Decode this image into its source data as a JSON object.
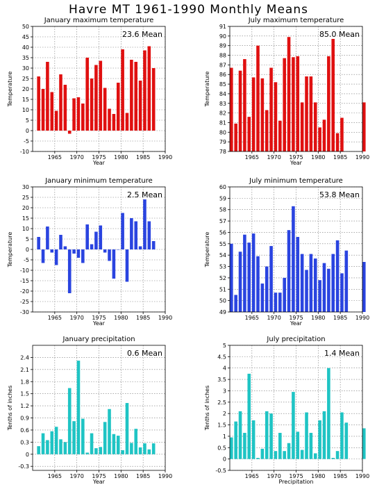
{
  "main_title": "Havre MT   1961-1990 Monthly Means",
  "chart_data": [
    {
      "type": "bar",
      "title": "January maximum temperature",
      "xlabel": "Year",
      "ylabel": "Temperature",
      "annotation": "23.6 Mean",
      "color": "#e01010",
      "xlim": [
        1960,
        1990
      ],
      "ylim": [
        -10,
        50
      ],
      "yticks": [
        -10,
        -5,
        0,
        5,
        10,
        15,
        20,
        25,
        30,
        35,
        40,
        45,
        50
      ],
      "ytick_labels": [
        "-10",
        "-5",
        "0",
        "5",
        "10",
        "15",
        "20",
        "25",
        "30",
        "35",
        "40",
        "45",
        "50"
      ],
      "xticks": [
        1965,
        1970,
        1975,
        1980,
        1985,
        1990
      ],
      "x": [
        1961,
        1962,
        1963,
        1964,
        1965,
        1966,
        1967,
        1968,
        1969,
        1970,
        1971,
        1972,
        1973,
        1974,
        1975,
        1976,
        1977,
        1978,
        1979,
        1980,
        1981,
        1982,
        1983,
        1984,
        1985,
        1986,
        1987,
        1988
      ],
      "values": [
        26,
        20,
        33,
        18.5,
        9.5,
        27,
        22,
        -1.5,
        15.5,
        16,
        13,
        35,
        25,
        31.5,
        33.5,
        20.5,
        10.5,
        8,
        23,
        39,
        8.5,
        34,
        33,
        24,
        38.5,
        40.5,
        30,
        null
      ],
      "grid": true
    },
    {
      "type": "bar",
      "title": "July maximum temperature",
      "xlabel": "Year",
      "ylabel": "Temperature",
      "annotation": "85.0 Mean",
      "color": "#e01010",
      "xlim": [
        1960,
        1990
      ],
      "ylim": [
        78,
        91
      ],
      "yticks": [
        78,
        79,
        80,
        81,
        82,
        83,
        84,
        85,
        86,
        87,
        88,
        89,
        90,
        91
      ],
      "ytick_labels": [
        "78",
        "79",
        "80",
        "81",
        "82",
        "83",
        "84",
        "85",
        "86",
        "87",
        "88",
        "89",
        "90",
        "91"
      ],
      "xticks": [
        1965,
        1970,
        1975,
        1980,
        1985,
        1990
      ],
      "x": [
        1960,
        1961,
        1962,
        1963,
        1964,
        1965,
        1966,
        1967,
        1968,
        1969,
        1970,
        1971,
        1972,
        1973,
        1974,
        1975,
        1976,
        1977,
        1978,
        1979,
        1980,
        1981,
        1982,
        1983,
        1984,
        1985,
        1986,
        1987,
        1988,
        1989,
        1990
      ],
      "values": [
        86.7,
        80.9,
        86.4,
        87.6,
        81.6,
        85.7,
        89.0,
        85.6,
        82.3,
        86.7,
        85.2,
        81.2,
        87.7,
        89.9,
        87.8,
        87.9,
        83.1,
        85.8,
        85.8,
        83.1,
        80.5,
        81.3,
        87.9,
        89.7,
        79.9,
        81.5,
        null,
        null,
        null,
        null,
        83.1
      ],
      "grid": true
    },
    {
      "type": "bar",
      "title": "January minimum temperature",
      "xlabel": "Year",
      "ylabel": "Temperature",
      "annotation": "2.5 Mean",
      "color": "#2a44e0",
      "xlim": [
        1960,
        1990
      ],
      "ylim": [
        -30,
        30
      ],
      "yticks": [
        -30,
        -25,
        -20,
        -15,
        -10,
        -5,
        0,
        5,
        10,
        15,
        20,
        25,
        30
      ],
      "ytick_labels": [
        "-30",
        "-25",
        "-20",
        "-15",
        "-10",
        "-5",
        "0",
        "5",
        "10",
        "15",
        "20",
        "25",
        "30"
      ],
      "xticks": [
        1965,
        1970,
        1975,
        1980,
        1985,
        1990
      ],
      "x": [
        1961,
        1962,
        1963,
        1964,
        1965,
        1966,
        1967,
        1968,
        1969,
        1970,
        1971,
        1972,
        1973,
        1974,
        1975,
        1976,
        1977,
        1978,
        1979,
        1980,
        1981,
        1982,
        1983,
        1984,
        1985,
        1986,
        1987,
        1988
      ],
      "values": [
        6,
        -6.5,
        11,
        -1.5,
        -7.5,
        7,
        1.5,
        -21,
        -2,
        -4,
        -6.5,
        12,
        2.5,
        8.5,
        11.5,
        -1.5,
        -5.5,
        -14,
        0,
        17.5,
        -15.5,
        15,
        13.5,
        1.5,
        24,
        13.5,
        4,
        null
      ],
      "grid": true
    },
    {
      "type": "bar",
      "title": "July minimum temperature",
      "xlabel": "Year",
      "ylabel": "Temperature",
      "annotation": "53.8 Mean",
      "color": "#2a44e0",
      "xlim": [
        1960,
        1990
      ],
      "ylim": [
        49,
        60
      ],
      "yticks": [
        49,
        50,
        51,
        52,
        53,
        54,
        55,
        56,
        57,
        58,
        59,
        60
      ],
      "ytick_labels": [
        "49",
        "50",
        "51",
        "52",
        "53",
        "54",
        "55",
        "56",
        "57",
        "58",
        "59",
        "60"
      ],
      "xticks": [
        1965,
        1970,
        1975,
        1980,
        1985,
        1990
      ],
      "x": [
        1960,
        1961,
        1962,
        1963,
        1964,
        1965,
        1966,
        1967,
        1968,
        1969,
        1970,
        1971,
        1972,
        1973,
        1974,
        1975,
        1976,
        1977,
        1978,
        1979,
        1980,
        1981,
        1982,
        1983,
        1984,
        1985,
        1986,
        1987,
        1988,
        1989,
        1990
      ],
      "values": [
        55,
        50.5,
        54.3,
        55.8,
        55.1,
        55.9,
        53.9,
        51.5,
        53,
        54.8,
        50.7,
        50.7,
        52,
        56.2,
        58.3,
        55.6,
        54.1,
        52.7,
        54.1,
        53.7,
        51.8,
        53.3,
        52.8,
        54.1,
        55.3,
        52.4,
        54.4,
        null,
        null,
        null,
        53.4
      ],
      "grid": true
    },
    {
      "type": "bar",
      "title": "January precipitation",
      "xlabel": "Year",
      "ylabel": "Tenths of inches",
      "annotation": "0.6 Mean",
      "color": "#1fc4c4",
      "xlim": [
        1960,
        1990
      ],
      "ylim": [
        -0.4,
        2.7
      ],
      "yticks": [
        -0.3,
        0,
        0.3,
        0.6,
        0.9,
        1.2,
        1.5,
        1.8,
        2.1,
        2.4
      ],
      "ytick_labels": [
        "-0.3",
        "0",
        "0.3",
        "0.6",
        "0.9",
        "1.2",
        "1.5",
        "1.8",
        "2.1",
        "2.4"
      ],
      "xticks": [
        1965,
        1970,
        1975,
        1980,
        1985,
        1990
      ],
      "x": [
        1961,
        1962,
        1963,
        1964,
        1965,
        1966,
        1967,
        1968,
        1969,
        1970,
        1971,
        1972,
        1973,
        1974,
        1975,
        1976,
        1977,
        1978,
        1979,
        1980,
        1981,
        1982,
        1983,
        1984,
        1985,
        1986,
        1987,
        1988
      ],
      "values": [
        0.2,
        0.52,
        0.35,
        0.57,
        0.68,
        0.37,
        0.3,
        1.64,
        0.82,
        2.32,
        0.88,
        0.04,
        0.52,
        0.15,
        0.18,
        0.8,
        1.12,
        0.5,
        0.46,
        0.1,
        1.27,
        0.28,
        0.63,
        0.17,
        0.27,
        0.12,
        0.27,
        null
      ],
      "grid": true
    },
    {
      "type": "bar",
      "title": "July precipitation",
      "xlabel": "Precipitation",
      "ylabel": "Tenths of inches",
      "annotation": "1.4 Mean",
      "color": "#1fc4c4",
      "xlim": [
        1960,
        1990
      ],
      "ylim": [
        -0.5,
        5
      ],
      "yticks": [
        -0.5,
        0,
        0.5,
        1,
        1.5,
        2,
        2.5,
        3,
        3.5,
        4,
        4.5,
        5
      ],
      "ytick_labels": [
        "-0.5",
        "0",
        "0.5",
        "1",
        "1.5",
        "2",
        "2.5",
        "3",
        "3.5",
        "4",
        "4.5",
        "5"
      ],
      "xticks": [
        1965,
        1970,
        1975,
        1980,
        1985,
        1990
      ],
      "x": [
        1960,
        1961,
        1962,
        1963,
        1964,
        1965,
        1966,
        1967,
        1968,
        1969,
        1970,
        1971,
        1972,
        1973,
        1974,
        1975,
        1976,
        1977,
        1978,
        1979,
        1980,
        1981,
        1982,
        1983,
        1984,
        1985,
        1986,
        1987,
        1988,
        1989,
        1990
      ],
      "values": [
        0.95,
        1.65,
        2.1,
        1.15,
        3.75,
        1.7,
        0.05,
        0.45,
        2.1,
        2.0,
        0.35,
        1.15,
        0.35,
        0.7,
        2.95,
        1.2,
        0.4,
        2.05,
        1.15,
        0.25,
        1.7,
        2.1,
        4.0,
        0.05,
        0.35,
        2.05,
        1.6,
        null,
        null,
        null,
        1.35
      ],
      "grid": true
    }
  ]
}
